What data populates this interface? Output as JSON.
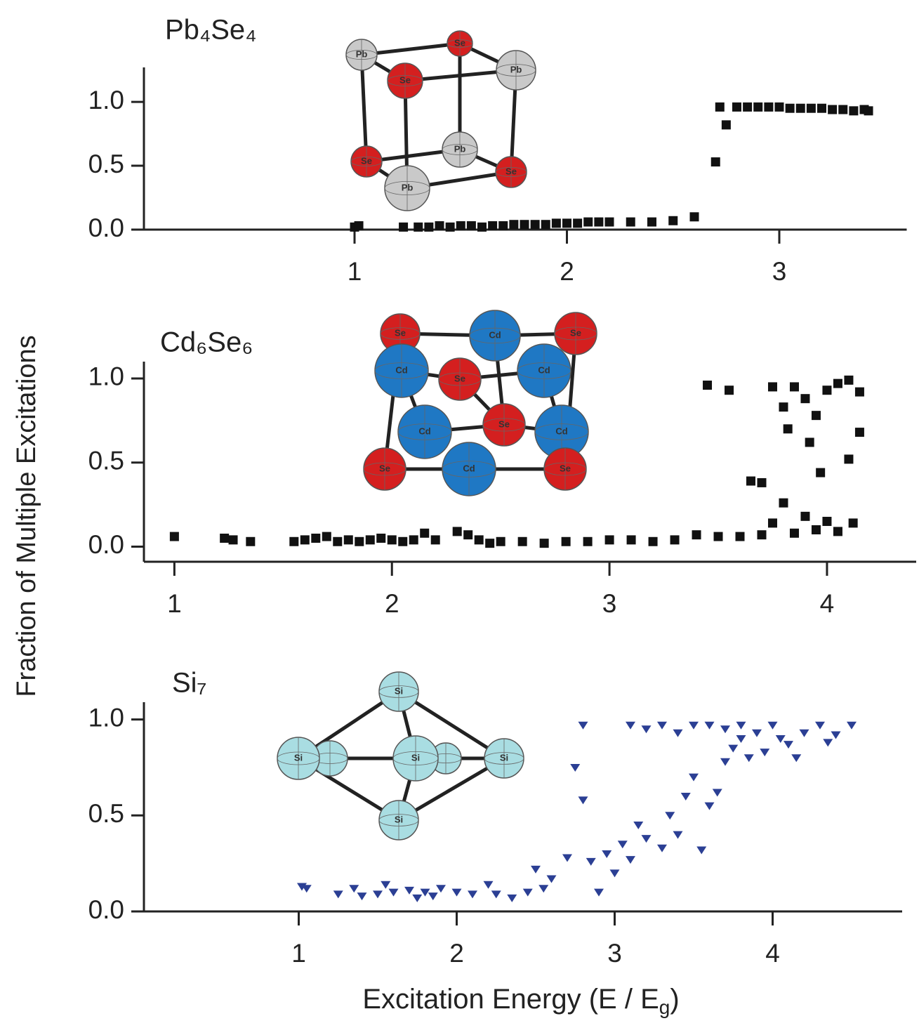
{
  "y_label": "Fraction of Multiple Excitations",
  "x_label_parts": [
    "Excitation Energy (E / E",
    "g",
    ")"
  ],
  "chart_data": [
    {
      "type": "scatter",
      "title": "Pb₄Se₄",
      "marker": "square",
      "molecule": [
        "Pb",
        "Se",
        "Se",
        "Pb",
        "Se",
        "Pb",
        "Se",
        "Pb"
      ],
      "xlim": [
        0,
        3.6
      ],
      "ylim": [
        0,
        1.27
      ],
      "xticks": [
        1,
        2,
        3
      ],
      "yticks": [
        {
          "value": 0,
          "label": "0.0"
        },
        {
          "value": 0.5,
          "label": "0.5"
        },
        {
          "value": 1,
          "label": "1.0"
        }
      ],
      "series": [
        {
          "color": "#111111",
          "x": [
            1.0,
            1.02,
            1.23,
            1.3,
            1.35,
            1.4,
            1.45,
            1.5,
            1.55,
            1.6,
            1.65,
            1.7,
            1.75,
            1.8,
            1.85,
            1.9,
            1.95,
            2.0,
            2.05,
            2.1,
            2.15,
            2.2,
            2.3,
            2.4,
            2.5,
            2.6,
            2.7,
            2.75,
            2.72,
            2.8,
            2.85,
            2.9,
            2.95,
            3.0,
            3.05,
            3.1,
            3.15,
            3.2,
            3.25,
            3.3,
            3.35,
            3.4,
            3.42
          ],
          "values": [
            0.02,
            0.03,
            0.02,
            0.02,
            0.02,
            0.03,
            0.02,
            0.03,
            0.03,
            0.02,
            0.03,
            0.03,
            0.04,
            0.04,
            0.04,
            0.04,
            0.05,
            0.05,
            0.05,
            0.06,
            0.06,
            0.06,
            0.06,
            0.06,
            0.07,
            0.1,
            0.53,
            0.82,
            0.96,
            0.96,
            0.96,
            0.96,
            0.96,
            0.96,
            0.95,
            0.95,
            0.95,
            0.95,
            0.94,
            0.94,
            0.93,
            0.94,
            0.93
          ]
        }
      ]
    },
    {
      "type": "scatter",
      "title": "Cd₆Se₆",
      "marker": "square",
      "molecule": [
        "Se",
        "Cd",
        "Se",
        "Cd",
        "Se",
        "Cd",
        "Cd",
        "Se",
        "Cd",
        "Se",
        "Cd",
        "Se"
      ],
      "xlim": [
        0.86,
        4.41
      ],
      "ylim": [
        -0.09,
        1.1
      ],
      "xticks": [
        1,
        2,
        3,
        4
      ],
      "yticks": [
        {
          "value": 0,
          "label": "0.0"
        },
        {
          "value": 0.5,
          "label": "0.5"
        },
        {
          "value": 1,
          "label": "1.0"
        }
      ],
      "series": [
        {
          "color": "#111111",
          "x": [
            1.0,
            1.23,
            1.27,
            1.35,
            1.55,
            1.6,
            1.65,
            1.7,
            1.75,
            1.8,
            1.85,
            1.9,
            1.95,
            2.0,
            2.05,
            2.1,
            2.15,
            2.2,
            2.3,
            2.35,
            2.4,
            2.45,
            2.5,
            2.6,
            2.7,
            2.8,
            2.9,
            3.0,
            3.1,
            3.2,
            3.3,
            3.4,
            3.45,
            3.5,
            3.55,
            3.6,
            3.65,
            3.7,
            3.7,
            3.75,
            3.75,
            3.8,
            3.8,
            3.85,
            3.85,
            3.9,
            3.9,
            3.92,
            3.95,
            3.97,
            4.0,
            4.0,
            4.05,
            4.05,
            4.1,
            4.1,
            4.12,
            4.15,
            4.15,
            3.82,
            3.95
          ],
          "values": [
            0.06,
            0.05,
            0.04,
            0.03,
            0.03,
            0.04,
            0.05,
            0.06,
            0.03,
            0.04,
            0.03,
            0.04,
            0.05,
            0.04,
            0.03,
            0.04,
            0.08,
            0.04,
            0.09,
            0.07,
            0.04,
            0.02,
            0.03,
            0.03,
            0.02,
            0.03,
            0.03,
            0.04,
            0.04,
            0.03,
            0.04,
            0.07,
            0.96,
            0.06,
            0.93,
            0.06,
            0.39,
            0.38,
            0.07,
            0.95,
            0.14,
            0.83,
            0.26,
            0.08,
            0.95,
            0.88,
            0.18,
            0.62,
            0.1,
            0.44,
            0.93,
            0.15,
            0.97,
            0.09,
            0.99,
            0.52,
            0.14,
            0.92,
            0.68,
            0.7,
            0.78
          ]
        }
      ]
    },
    {
      "type": "scatter",
      "title": "Si₇",
      "marker": "triangle-down",
      "molecule": [
        "Si",
        "Si",
        "Si",
        "Si",
        "Si"
      ],
      "xlim": [
        0.02,
        4.82
      ],
      "ylim": [
        0,
        1.09
      ],
      "xticks": [
        1,
        2,
        3,
        4
      ],
      "yticks": [
        {
          "value": 0,
          "label": "0.0"
        },
        {
          "value": 0.5,
          "label": "0.5"
        },
        {
          "value": 1,
          "label": "1.0"
        }
      ],
      "series": [
        {
          "color": "#2b3f94",
          "x": [
            1.02,
            1.05,
            1.25,
            1.35,
            1.4,
            1.5,
            1.55,
            1.6,
            1.7,
            1.75,
            1.8,
            1.85,
            1.9,
            2.0,
            2.1,
            2.2,
            2.25,
            2.35,
            2.45,
            2.5,
            2.55,
            2.6,
            2.7,
            2.75,
            2.8,
            2.85,
            2.9,
            2.95,
            3.0,
            3.05,
            3.1,
            3.15,
            3.2,
            3.3,
            3.35,
            3.4,
            3.45,
            3.5,
            3.55,
            3.6,
            3.65,
            3.7,
            3.75,
            3.8,
            2.8,
            3.1,
            3.2,
            3.3,
            3.4,
            3.5,
            3.6,
            3.7,
            3.8,
            3.9,
            4.0,
            4.05,
            4.1,
            4.2,
            4.3,
            4.35,
            4.4,
            4.5,
            3.85,
            3.95,
            4.15
          ],
          "values": [
            0.13,
            0.12,
            0.09,
            0.12,
            0.08,
            0.09,
            0.14,
            0.1,
            0.11,
            0.07,
            0.1,
            0.08,
            0.12,
            0.1,
            0.09,
            0.14,
            0.09,
            0.07,
            0.1,
            0.22,
            0.12,
            0.17,
            0.28,
            0.75,
            0.58,
            0.26,
            0.1,
            0.3,
            0.2,
            0.35,
            0.27,
            0.45,
            0.38,
            0.33,
            0.5,
            0.4,
            0.6,
            0.7,
            0.32,
            0.55,
            0.62,
            0.78,
            0.85,
            0.9,
            0.97,
            0.97,
            0.95,
            0.97,
            0.93,
            0.97,
            0.97,
            0.95,
            0.97,
            0.93,
            0.97,
            0.9,
            0.87,
            0.93,
            0.97,
            0.88,
            0.92,
            0.97,
            0.8,
            0.83,
            0.8
          ]
        }
      ]
    }
  ]
}
